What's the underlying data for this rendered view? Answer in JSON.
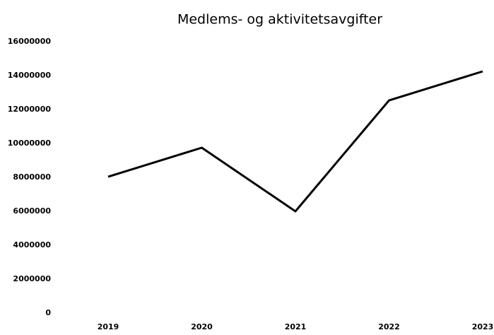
{
  "chart_data": {
    "type": "line",
    "title": "Medlems- og aktivitetsavgifter",
    "categories": [
      "2019",
      "2020",
      "2021",
      "2022",
      "2023"
    ],
    "series": [
      {
        "name": "Medlems- og aktivitetsavgifter",
        "color": "#000000",
        "values": [
          8040000,
          9750000,
          6000000,
          12540000,
          14250000
        ]
      }
    ],
    "ylim": [
      0,
      16000000
    ],
    "yticks": [
      0,
      2000000,
      4000000,
      6000000,
      8000000,
      10000000,
      12000000,
      14000000,
      16000000
    ],
    "grid": false,
    "legend": false
  }
}
